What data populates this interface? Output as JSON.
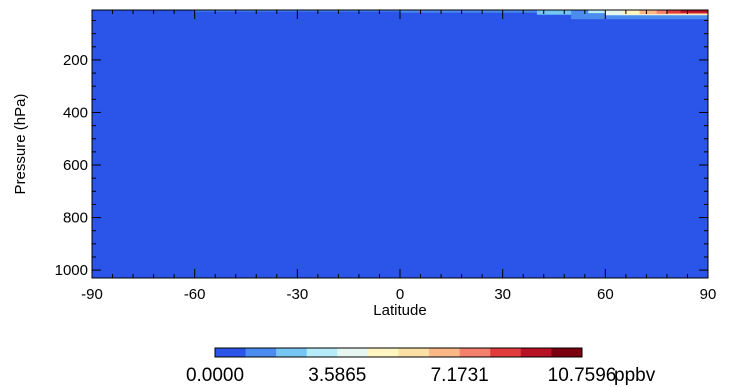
{
  "chart_data": {
    "type": "heatmap",
    "xlabel": "Latitude",
    "ylabel": "Pressure (hPa)",
    "xlim": [
      -90,
      90
    ],
    "ylim": [
      1030,
      10
    ],
    "y_reversed": true,
    "grid": false,
    "x_ticks": [
      {
        "value": -90,
        "label": "-90"
      },
      {
        "value": -60,
        "label": "-60"
      },
      {
        "value": -30,
        "label": "-30"
      },
      {
        "value": 0,
        "label": "0"
      },
      {
        "value": 30,
        "label": "30"
      },
      {
        "value": 60,
        "label": "60"
      },
      {
        "value": 90,
        "label": "90"
      }
    ],
    "y_ticks": [
      {
        "value": 200,
        "label": "200"
      },
      {
        "value": 400,
        "label": "400"
      },
      {
        "value": 600,
        "label": "600"
      },
      {
        "value": 800,
        "label": "800"
      },
      {
        "value": 1000,
        "label": "1000"
      }
    ],
    "background_value": 0.0,
    "regions": [
      {
        "lat_min": -60,
        "lat_max": 0,
        "p_top": 10,
        "p_bottom": 16,
        "value": 1.2
      },
      {
        "lat_min": 0,
        "lat_max": 40,
        "p_top": 10,
        "p_bottom": 20,
        "value": 1.5
      },
      {
        "lat_min": 40,
        "lat_max": 90,
        "p_top": 10,
        "p_bottom": 28,
        "value": 2.4
      },
      {
        "lat_min": 50,
        "lat_max": 90,
        "p_top": 10,
        "p_bottom": 45,
        "value": 1.4
      },
      {
        "lat_min": 55,
        "lat_max": 90,
        "p_top": 10,
        "p_bottom": 22,
        "value": 3.2
      },
      {
        "lat_min": 60,
        "lat_max": 90,
        "p_top": 10,
        "p_bottom": 30,
        "value": 4.3
      },
      {
        "lat_min": 65,
        "lat_max": 90,
        "p_top": 10,
        "p_bottom": 28,
        "value": 5.3
      },
      {
        "lat_min": 70,
        "lat_max": 90,
        "p_top": 10,
        "p_bottom": 26,
        "value": 6.4
      },
      {
        "lat_min": 75,
        "lat_max": 90,
        "p_top": 10,
        "p_bottom": 24,
        "value": 7.4
      },
      {
        "lat_min": 78,
        "lat_max": 90,
        "p_top": 10,
        "p_bottom": 22,
        "value": 8.4
      },
      {
        "lat_min": 82,
        "lat_max": 90,
        "p_top": 10,
        "p_bottom": 20,
        "value": 9.4
      }
    ],
    "colorbar": {
      "min": 0.0,
      "max": 10.7596,
      "unit": "ppbv",
      "labels": [
        "0.0000",
        "3.5865",
        "7.1731",
        "10.7596"
      ],
      "colors": [
        "#2b54e8",
        "#4a8cf0",
        "#75c6f2",
        "#b6ecf8",
        "#e6f7f2",
        "#fff6c2",
        "#fde0a4",
        "#fbb886",
        "#f4806e",
        "#e03c3c",
        "#b81226",
        "#7a0010"
      ]
    }
  }
}
